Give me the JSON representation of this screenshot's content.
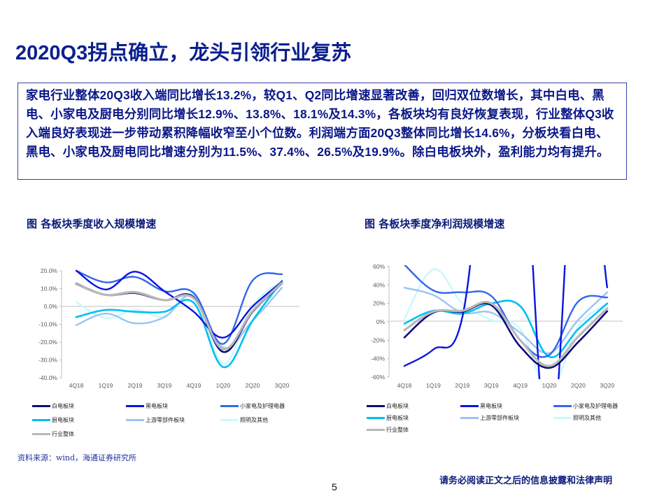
{
  "page": {
    "title": "2020Q3拐点确立，龙头引领行业复苏",
    "summary": "家电行业整体20Q3收入端同比增长13.2%，较Q1、Q2同比增速显著改善，回归双位数增长，其中白电、黑电、小家电及厨电分别同比增长12.9%、13.8%、18.1%及14.3%，各板块均有良好恢复表现，行业整体Q3收入端良好表现进一步带动累积降幅收窄至小个位数。利润端方面20Q3整体同比增长14.6%，分板块看白电、黑电、小家电及厨电同比增速分别为11.5%、37.4%、26.5%及19.9%。除白电板块外，盈利能力均有提升。",
    "source": "资料来源：wind，海通证券研究所",
    "page_number": "5",
    "disclaimer": "请务必阅读正文之后的信息披露和法律声明"
  },
  "colors": {
    "title": "#0b1f8f",
    "border": "#3a3fa8",
    "baiDian": "#0c0c7a",
    "heiDian": "#0a14e0",
    "xiaoJiaDian": "#3366ee",
    "chuDian": "#00bff0",
    "shangYou": "#99c4f5",
    "zhaoMing": "#c8f8ff",
    "hangYe": "#b8b8b8"
  },
  "legend": [
    {
      "label": "白电板块",
      "color": "#0c0c7a"
    },
    {
      "label": "黑电板块",
      "color": "#0a14e0"
    },
    {
      "label": "小家电及护理电器",
      "color": "#3366ee"
    },
    {
      "label": "厨电板块",
      "color": "#00bff0"
    },
    {
      "label": "上游零部件板块",
      "color": "#99c4f5"
    },
    {
      "label": "照明及其他",
      "color": "#c8f8ff"
    },
    {
      "label": "行业整体",
      "color": "#b8b8b8"
    }
  ],
  "chart_data": [
    {
      "type": "line",
      "title": "图  各板块季度收入规模增速",
      "categories": [
        "4Q18",
        "1Q19",
        "2Q19",
        "3Q19",
        "4Q19",
        "1Q20",
        "2Q20",
        "3Q20"
      ],
      "ytick_labels": [
        "20.0%",
        "10.0%",
        "0.0%",
        "-10.0%",
        "-20.0%",
        "-30.0%",
        "-40.0%"
      ],
      "ylim": [
        -40,
        20
      ],
      "xlabel": "",
      "ylabel": "",
      "grid": false,
      "legend_position": "bottom",
      "series": [
        {
          "name": "白电板块",
          "values": [
            12.8,
            6.5,
            7.5,
            3.5,
            5.0,
            -25.5,
            -3.0,
            12.9
          ]
        },
        {
          "name": "黑电板块",
          "values": [
            20.0,
            9.5,
            19.5,
            8.5,
            -3.0,
            -17.5,
            0.0,
            13.8
          ]
        },
        {
          "name": "小家电及护理电器",
          "values": [
            20.0,
            13.5,
            16.5,
            8.5,
            7.5,
            -21.0,
            14.5,
            18.1
          ]
        },
        {
          "name": "厨电板块",
          "values": [
            -6.0,
            -2.0,
            -3.0,
            -3.0,
            2.0,
            -34.0,
            -8.0,
            14.3
          ]
        },
        {
          "name": "上游零部件板块",
          "values": [
            -10.5,
            -4.0,
            -9.5,
            -6.0,
            6.0,
            -23.0,
            -8.0,
            10.5
          ]
        },
        {
          "name": "照明及其他",
          "values": [
            2.5,
            -6.5,
            -2.0,
            -5.5,
            6.5,
            -32.0,
            0.5,
            14.5
          ]
        },
        {
          "name": "行业整体",
          "values": [
            12.5,
            6.5,
            8.0,
            3.5,
            4.5,
            -24.0,
            -2.5,
            13.2
          ]
        }
      ]
    },
    {
      "type": "line",
      "title": "图  各板块季度净利润规模增速",
      "categories": [
        "4Q18",
        "1Q19",
        "2Q19",
        "3Q19",
        "4Q19",
        "1Q20",
        "2Q20",
        "3Q20"
      ],
      "ytick_labels": [
        "60%",
        "40%",
        "20%",
        "0%",
        "-20%",
        "-40%",
        "-60%"
      ],
      "ylim": [
        -60,
        60
      ],
      "xlabel": "",
      "ylabel": "",
      "grid": false,
      "legend_position": "bottom",
      "series": [
        {
          "name": "白电板块",
          "values": [
            -17,
            10,
            11,
            18,
            -27,
            -50,
            -22,
            11.5
          ]
        },
        {
          "name": "黑电板块",
          "values": [
            -48,
            -30,
            5,
            250,
            250,
            -150,
            250,
            37.4
          ]
        },
        {
          "name": "小家电及护理电器",
          "values": [
            62,
            34,
            32,
            28,
            -20,
            -36,
            22,
            26.5
          ]
        },
        {
          "name": "厨电板块",
          "values": [
            -2,
            12,
            9,
            20,
            17,
            -38,
            -8,
            19.9
          ]
        },
        {
          "name": "上游零部件板块",
          "values": [
            37,
            29,
            10,
            10,
            -12,
            -34,
            2,
            32
          ]
        },
        {
          "name": "照明及其他",
          "values": [
            3,
            57,
            20,
            2,
            -8,
            -75,
            -5,
            20
          ]
        },
        {
          "name": "行业整体",
          "values": [
            -9,
            11,
            12,
            20,
            -20,
            -48,
            -16,
            14.6
          ]
        }
      ]
    }
  ]
}
